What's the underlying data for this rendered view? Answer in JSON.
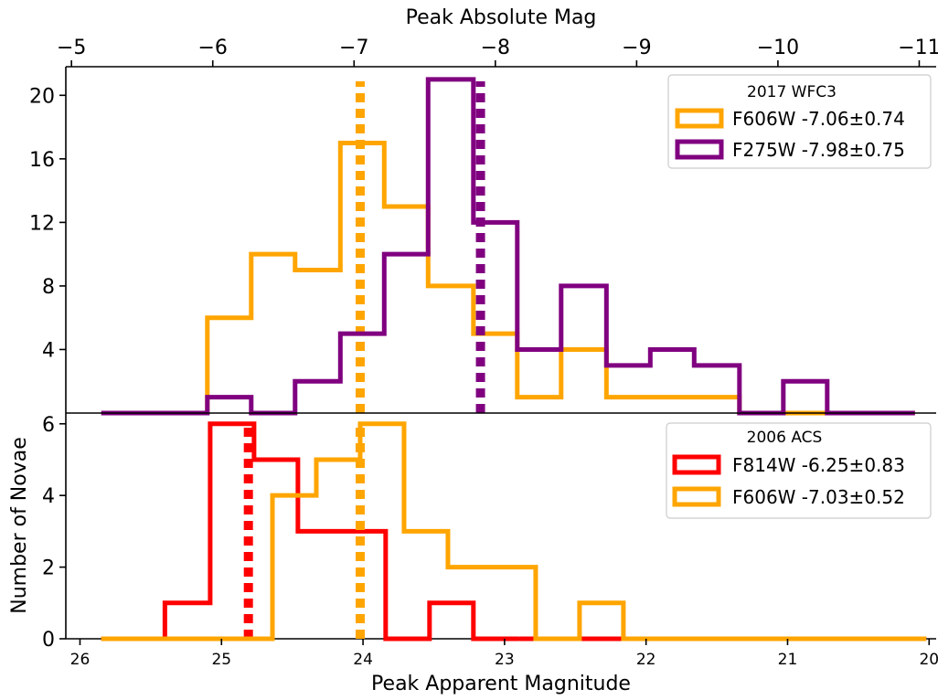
{
  "chart_data": [
    {
      "type": "histogram",
      "panel": "top",
      "ylabel": "",
      "xlim": [
        26.1,
        19.95
      ],
      "ylim": [
        0,
        21.8
      ],
      "yticks": [
        4,
        8,
        12,
        16,
        20
      ],
      "ytick_labels": [
        "4",
        "8",
        "12",
        "16",
        "20"
      ],
      "top_axis": {
        "label": "Peak Absolute Mag",
        "ticks": [
          -5,
          -6,
          -7,
          -8,
          -9,
          -10,
          -11
        ],
        "tick_labels": [
          "−5",
          "−6",
          "−7",
          "−8",
          "−9",
          "−10",
          "−11"
        ]
      },
      "legend": {
        "title": "2017 WFC3",
        "entries": [
          "F606W -7.06±0.74",
          "F275W -7.98±0.75"
        ]
      },
      "series": [
        {
          "name": "F606W -7.06±0.74",
          "color": "#ffa500",
          "edges": [
            25.1,
            24.79,
            24.48,
            24.16,
            23.85,
            23.54,
            23.22,
            22.91,
            22.6,
            22.28,
            21.97,
            21.66,
            21.34,
            21.03,
            20.72,
            20.4,
            20.1
          ],
          "counts": [
            6,
            10,
            9,
            17,
            13,
            8,
            5,
            1,
            4,
            1,
            1,
            1,
            0,
            0,
            0,
            0
          ],
          "mean_apparent": 24.02
        },
        {
          "name": "F275W -7.98±0.75",
          "color": "#800080",
          "edges": [
            25.85,
            25.1,
            24.79,
            24.48,
            24.16,
            23.85,
            23.54,
            23.22,
            22.91,
            22.6,
            22.28,
            21.97,
            21.66,
            21.34,
            21.03,
            20.72,
            20.4,
            20.1
          ],
          "counts": [
            0,
            1,
            0,
            2,
            5,
            10,
            21,
            12,
            4,
            8,
            3,
            4,
            3,
            0,
            2,
            0,
            0
          ],
          "mean_apparent": 23.17
        }
      ]
    },
    {
      "type": "histogram",
      "panel": "bottom",
      "ylabel": "Number of Novae",
      "xlabel": "Peak Apparent Magnitude",
      "xlim": [
        26.1,
        19.95
      ],
      "ylim": [
        0,
        6.3
      ],
      "xticks": [
        26,
        25,
        24,
        23,
        22,
        21,
        20
      ],
      "xtick_labels": [
        "26",
        "25",
        "24",
        "23",
        "22",
        "21",
        "20"
      ],
      "yticks": [
        0,
        2,
        4,
        6
      ],
      "ytick_labels": [
        "0",
        "2",
        "4",
        "6"
      ],
      "legend": {
        "title": "2006 ACS",
        "entries": [
          "F814W -6.25±0.83",
          "F606W -7.03±0.52"
        ]
      },
      "series": [
        {
          "name": "F814W -6.25±0.83",
          "color": "#ff0000",
          "edges": [
            25.85,
            25.4,
            25.08,
            24.77,
            24.46,
            24.15,
            23.84,
            23.53,
            23.22,
            22.9
          ],
          "counts": [
            0,
            1,
            6,
            5,
            3,
            3,
            0,
            1,
            0
          ],
          "tail_edges": [
            22.9,
            20.02
          ],
          "mean_apparent": 24.81
        },
        {
          "name": "F606W -7.03±0.52",
          "color": "#ffa500",
          "edges": [
            25.85,
            24.64,
            24.33,
            24.02,
            23.71,
            23.4,
            23.09,
            22.78,
            22.47,
            22.16,
            20.02
          ],
          "counts": [
            0,
            4,
            5,
            6,
            3,
            2,
            2,
            0,
            1,
            0
          ],
          "mean_apparent": 24.02
        }
      ]
    }
  ]
}
